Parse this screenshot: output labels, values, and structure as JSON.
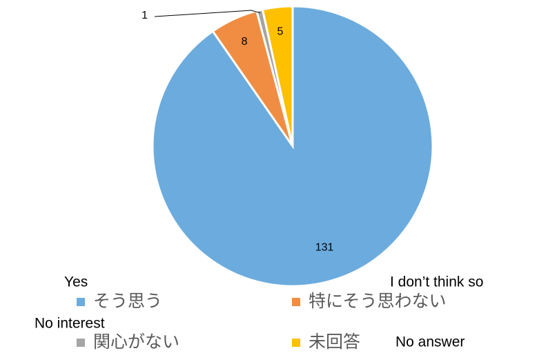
{
  "chart_data": {
    "type": "pie",
    "categories": [
      "そう思う",
      "特にそう思わない",
      "関心がない",
      "未回答"
    ],
    "values": [
      131,
      8,
      1,
      5
    ],
    "colors": [
      "#6CABDD",
      "#F08D42",
      "#A5A5A5",
      "#FFC000"
    ],
    "annotations": [
      "Yes",
      "I don’t think so",
      "No interest",
      "No answer"
    ],
    "legend": "bottom"
  }
}
